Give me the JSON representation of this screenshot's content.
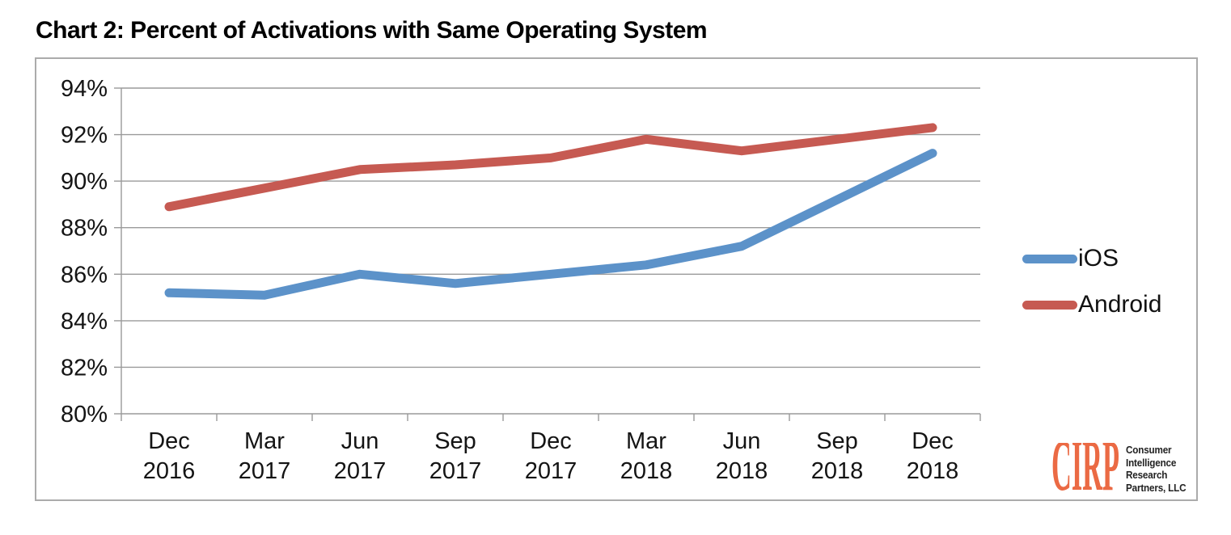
{
  "title": "Chart 2: Percent of Activations with Same Operating System",
  "chart_data": {
    "type": "line",
    "title": "Chart 2: Percent of Activations with Same Operating System",
    "categories": [
      "Dec 2016",
      "Mar 2017",
      "Jun 2017",
      "Sep 2017",
      "Dec 2017",
      "Mar 2018",
      "Jun 2018",
      "Sep 2018",
      "Dec 2018"
    ],
    "series": [
      {
        "name": "iOS",
        "color": "#5c92c9",
        "values": [
          85.2,
          85.1,
          86.0,
          85.6,
          86.0,
          86.4,
          87.2,
          89.2,
          91.2
        ]
      },
      {
        "name": "Android",
        "color": "#c65a52",
        "values": [
          88.9,
          89.7,
          90.5,
          90.7,
          91.0,
          91.8,
          91.3,
          91.8,
          92.3
        ]
      }
    ],
    "xlabel": "",
    "ylabel": "",
    "ylim": [
      80,
      94
    ],
    "ytick_step": 2,
    "y_suffix": "%",
    "grid": true,
    "legend_position": "right"
  },
  "logo": {
    "mark": "CIRP",
    "lines": [
      "Consumer",
      "Intelligence",
      "Research",
      "Partners, LLC"
    ]
  }
}
